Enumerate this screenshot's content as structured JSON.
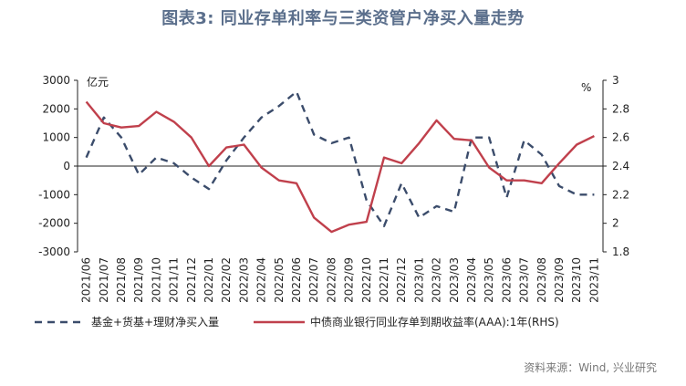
{
  "title": "图表3:   同业存单利率与三类资管户净买入量走势",
  "source": "资料来源：Wind, 兴业研究",
  "chart_data": {
    "type": "line",
    "categories": [
      "2021/06",
      "2021/07",
      "2021/08",
      "2021/09",
      "2021/10",
      "2021/11",
      "2021/12",
      "2022/01",
      "2022/02",
      "2022/03",
      "2022/04",
      "2022/05",
      "2022/06",
      "2022/07",
      "2022/08",
      "2022/09",
      "2022/10",
      "2022/11",
      "2022/12",
      "2023/01",
      "2023/02",
      "2023/03",
      "2023/04",
      "2023/05",
      "2023/06",
      "2023/07",
      "2023/08",
      "2023/09",
      "2023/10",
      "2023/11"
    ],
    "left_axis": {
      "label": "亿元",
      "min": -3000,
      "max": 3000,
      "ticks": [
        3000,
        2000,
        1000,
        0,
        -1000,
        -2000,
        -3000
      ]
    },
    "right_axis": {
      "label": "%",
      "min": 1.8,
      "max": 3.0,
      "ticks": [
        3,
        2.8,
        2.6,
        2.4,
        2.2,
        2,
        1.8
      ]
    },
    "series": [
      {
        "name": "基金+货基+理财净买入量",
        "axis": "left",
        "style": "dashed",
        "color": "#3b4c6b",
        "values": [
          300,
          1700,
          1000,
          -300,
          300,
          100,
          -400,
          -800,
          200,
          1000,
          1700,
          2100,
          2600,
          1100,
          800,
          1000,
          -1200,
          -2100,
          -600,
          -1800,
          -1400,
          -1600,
          1000,
          1000,
          -1100,
          900,
          400,
          -700,
          -1000,
          -1000
        ]
      },
      {
        "name": "中债商业银行同业存单到期收益率(AAA):1年(RHS)",
        "axis": "right",
        "style": "solid",
        "color": "#c0404c",
        "values": [
          2.85,
          2.7,
          2.67,
          2.68,
          2.78,
          2.71,
          2.6,
          2.4,
          2.53,
          2.55,
          2.39,
          2.3,
          2.28,
          2.04,
          1.94,
          1.99,
          2.01,
          2.46,
          2.42,
          2.56,
          2.72,
          2.59,
          2.58,
          2.39,
          2.3,
          2.3,
          2.28,
          2.42,
          2.55,
          2.61
        ]
      }
    ]
  }
}
